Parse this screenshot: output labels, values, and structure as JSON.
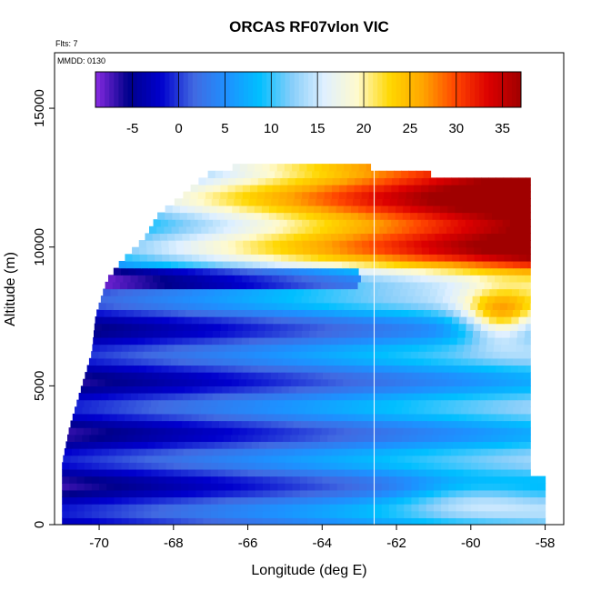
{
  "chart_data": {
    "type": "heatmap",
    "title": "ORCAS RF07vlon VIC",
    "annotations": [
      "Flts: 7",
      "MMDD: 0130"
    ],
    "xlabel": "Longitude (deg E)",
    "ylabel": "Altitude (m)",
    "xlim": [
      -71.2,
      -57.5
    ],
    "ylim": [
      0,
      17000
    ],
    "x_ticks": [
      -70,
      -68,
      -66,
      -64,
      -62,
      -60,
      -58
    ],
    "x_tick_labels": [
      "-70",
      "-68",
      "-66",
      "-64",
      "-62",
      "-60",
      "-58"
    ],
    "y_ticks": [
      0,
      5000,
      10000,
      15000
    ],
    "y_tick_labels": [
      "0",
      "5000",
      "10000",
      "15000"
    ],
    "colorbar": {
      "range": [
        -9,
        37
      ],
      "ticks": [
        -5,
        0,
        5,
        10,
        15,
        20,
        25,
        30,
        35
      ],
      "tick_labels": [
        "-5",
        "0",
        "5",
        "10",
        "15",
        "20",
        "25",
        "30",
        "35"
      ],
      "colors": [
        "#8a2be2",
        "#00008b",
        "#0000cd",
        "#4169e1",
        "#1e90ff",
        "#00bfff",
        "#87cefa",
        "#e0f0ff",
        "#fffacd",
        "#ffd700",
        "#ffa500",
        "#ff4500",
        "#dc0000",
        "#a00000"
      ]
    },
    "vertical_line_x": -62.6,
    "envelope": {
      "left_edge": [
        [
          0,
          -71.0
        ],
        [
          2200,
          -71.0
        ],
        [
          3500,
          -70.8
        ],
        [
          5300,
          -70.4
        ],
        [
          6200,
          -70.2
        ],
        [
          7500,
          -70.1
        ],
        [
          8800,
          -69.8
        ],
        [
          9500,
          -69.4
        ],
        [
          10300,
          -68.8
        ],
        [
          11200,
          -68.4
        ],
        [
          11800,
          -67.8
        ],
        [
          12300,
          -67.4
        ],
        [
          12800,
          -66.9
        ],
        [
          13000,
          -65.6
        ],
        [
          12800,
          -65.2
        ]
      ],
      "right_edge": [
        [
          0,
          -58.0
        ],
        [
          1800,
          -58.0
        ],
        [
          2500,
          -58.4
        ],
        [
          12500,
          -58.4
        ],
        [
          12500,
          -61.0
        ],
        [
          12800,
          -61.2
        ],
        [
          12800,
          -65.2
        ]
      ]
    },
    "field_description": {
      "regions": [
        {
          "x_range": [
            -71.0,
            -65.0
          ],
          "y_range": [
            0,
            9000
          ],
          "value_approx": -3
        },
        {
          "x_range": [
            -65.0,
            -58.4
          ],
          "y_range": [
            0,
            7000
          ],
          "value_approx": 6
        },
        {
          "x_range": [
            -62.5,
            -58.4
          ],
          "y_range": [
            0,
            1800
          ],
          "value_approx": 11
        },
        {
          "x_range": [
            -63.0,
            -58.4
          ],
          "y_range": [
            9000,
            12500
          ],
          "value_approx": 26
        },
        {
          "x_range": [
            -60.5,
            -58.4
          ],
          "y_range": [
            8500,
            12500
          ],
          "value_approx": 34
        },
        {
          "x_range": [
            -69.0,
            -64.0
          ],
          "y_range": [
            9000,
            12800
          ],
          "value_approx": 8
        },
        {
          "x_range": [
            -64.0,
            -62.5
          ],
          "y_range": [
            9000,
            12800
          ],
          "value_approx": 16
        }
      ]
    }
  }
}
